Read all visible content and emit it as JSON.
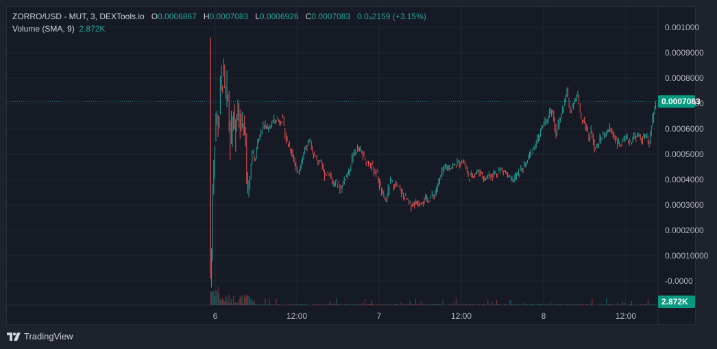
{
  "legend": {
    "symbol": "ZORRO/USD - MUT, 3, DEXTools.io",
    "open_label": "O",
    "open": "0.0006867",
    "high_label": "H",
    "high": "0.0007083",
    "low_label": "L",
    "low": "0.0006926",
    "close_label": "C",
    "close": "0.0007083",
    "change": "0.0₄2159 (+3.15%)",
    "volume_label": "Volume (SMA, 9)",
    "volume_value": "2.872K"
  },
  "price_axis": {
    "labels": [
      "0.001000",
      "0.0009000",
      "0.0008000",
      "0.0007000",
      "0.0006000",
      "0.0005000",
      "0.0004000",
      "0.0003000",
      "0.0002000",
      "0.00010000",
      "-0.0000"
    ],
    "last_price": "0.0007083",
    "volume_last": "2.872K"
  },
  "time_axis": {
    "labels": [
      "6",
      "12:00",
      "7",
      "12:00",
      "8",
      "12:00"
    ]
  },
  "brand": {
    "name": "TradingView"
  },
  "colors": {
    "up": "#26a69a",
    "down": "#ef5350",
    "background": "#161a25",
    "grid": "#232733"
  },
  "chart_data": {
    "type": "candlestick",
    "x": [
      "6 00:00",
      "6 03:00",
      "6 06:00",
      "6 09:00",
      "6 12:00",
      "6 15:00",
      "6 18:00",
      "6 21:00",
      "7 00:00",
      "7 03:00",
      "7 06:00",
      "7 09:00",
      "7 12:00",
      "7 15:00",
      "7 18:00",
      "7 21:00",
      "8 00:00",
      "8 03:00",
      "8 06:00",
      "8 09:00",
      "8 12:00",
      "8 15:00"
    ],
    "y": [
      5e-05,
      0.00078,
      0.0006,
      0.0006,
      0.00052,
      0.00045,
      0.00043,
      0.00053,
      0.00048,
      0.00032,
      0.00031,
      0.00033,
      0.00046,
      0.00047,
      0.00043,
      0.00041,
      0.00055,
      0.00065,
      0.00069,
      0.00053,
      0.00054,
      0.0007
    ],
    "ylim": [
      -0.0,
      0.001
    ],
    "volume_sma_last": 2872,
    "grid": true
  }
}
